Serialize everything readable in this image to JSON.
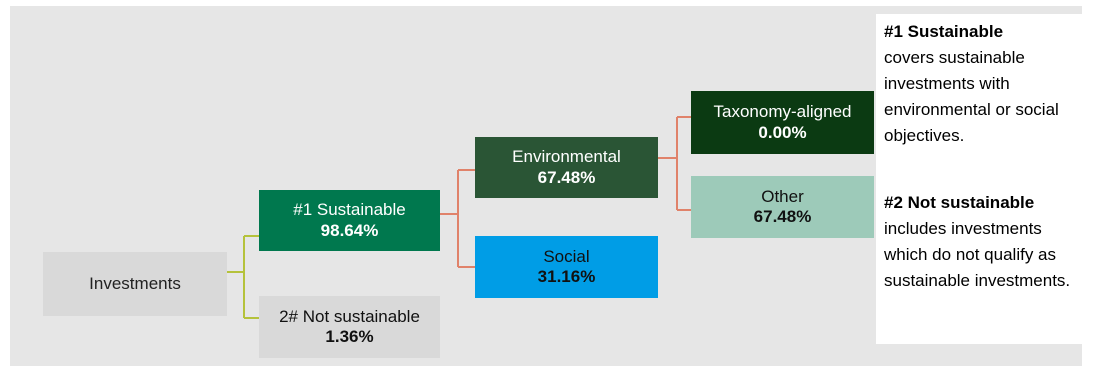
{
  "diagram": {
    "root": {
      "label": "Investments"
    },
    "sustainable": {
      "label": "#1 Sustainable",
      "value": "98.64%"
    },
    "not_sustainable": {
      "label": "2# Not sustainable",
      "value": "1.36%"
    },
    "environmental": {
      "label": "Environmental",
      "value": "67.48%"
    },
    "social": {
      "label": "Social",
      "value": "31.16%"
    },
    "taxonomy": {
      "label": "Taxonomy-aligned",
      "value": "0.00%"
    },
    "other": {
      "label": "Other",
      "value": "67.48%"
    }
  },
  "legend": {
    "item1": {
      "heading": "#1 Sustainable",
      "text": "covers sustainable investments with environmental or social objectives."
    },
    "item2": {
      "heading": "#2 Not sustainable",
      "text": "includes investments which do not qualify as sustainable investments."
    }
  },
  "colors": {
    "sustainable": "#00784e",
    "environmental": "#2a5535",
    "social": "#009de6",
    "taxonomy": "#0b3a12",
    "other": "#9dcab9",
    "connector_root": "#b5c23b",
    "connector_branch": "#e0826a"
  }
}
